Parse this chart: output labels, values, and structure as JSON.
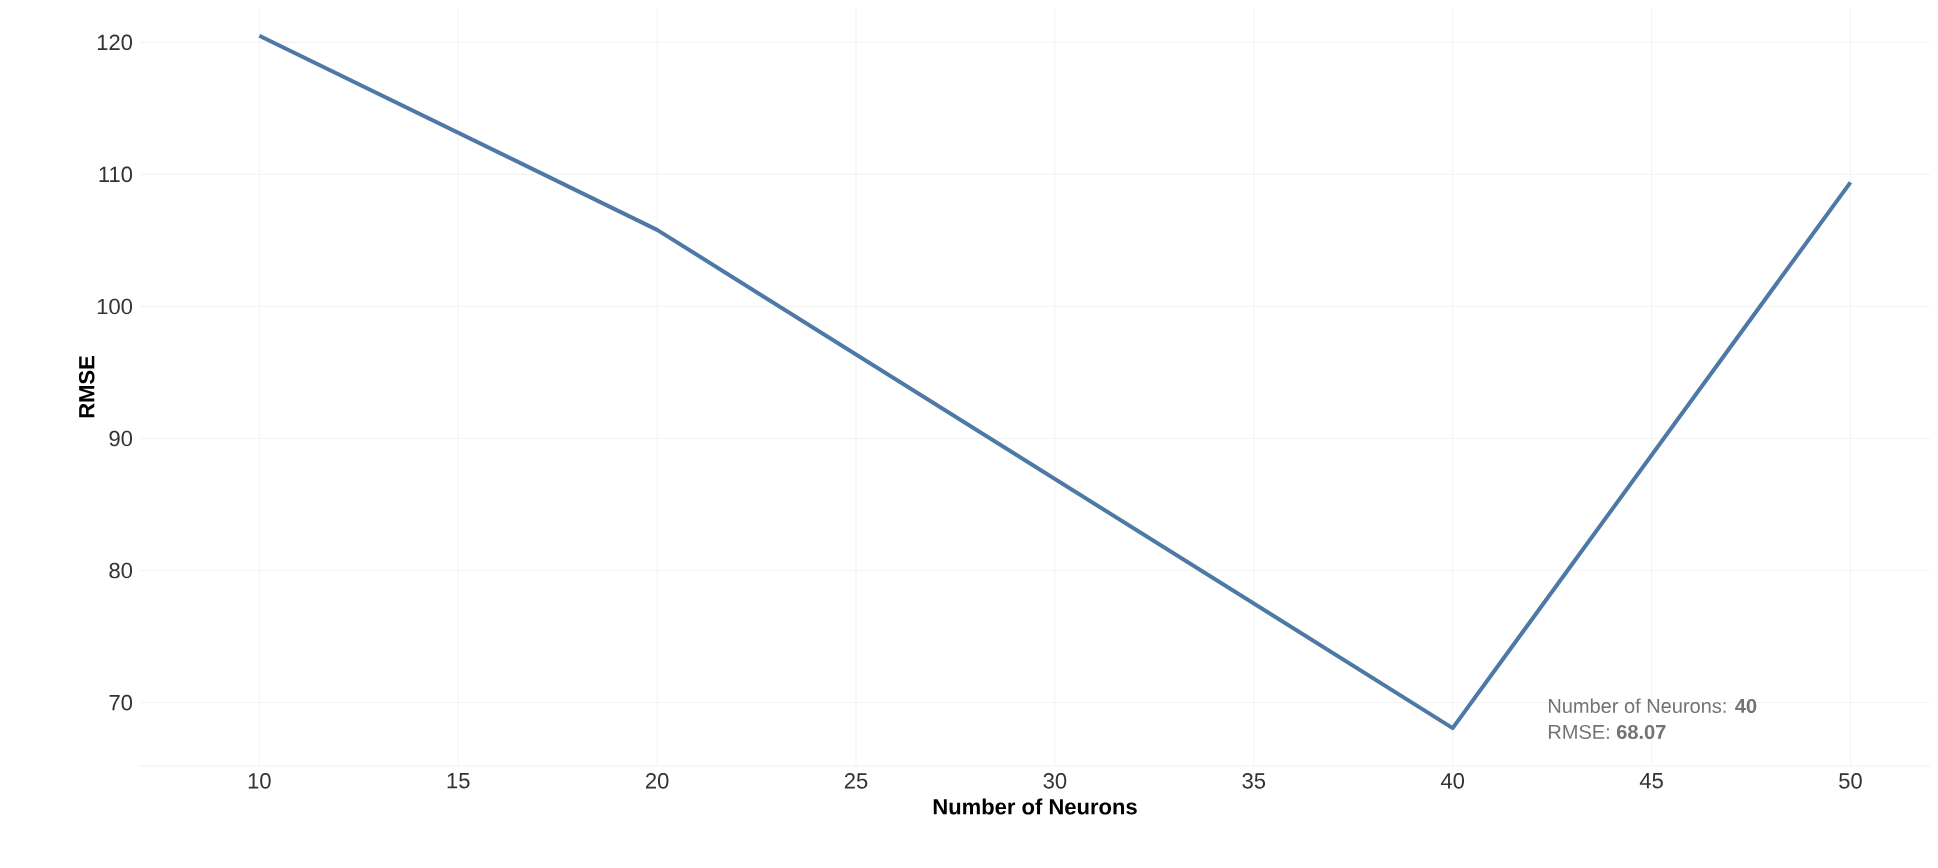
{
  "chart_data": {
    "type": "line",
    "xlabel": "Number of Neurons",
    "ylabel": "RMSE",
    "x": [
      10,
      20,
      40,
      50
    ],
    "series": [
      {
        "color": "#4e79a7",
        "values": [
          120.5,
          105.8,
          68.07,
          109.4
        ]
      }
    ],
    "xlim": [
      7,
      52
    ],
    "xticks": [
      10,
      15,
      20,
      25,
      30,
      35,
      40,
      45,
      50
    ],
    "ylim": [
      65.2,
      122.6
    ],
    "yticks": [
      70,
      80,
      90,
      100,
      110,
      120
    ],
    "grid": true,
    "line_style": "solid",
    "annotations": [
      "Number of Neurons: **40**",
      "RMSE: **68.07**"
    ]
  }
}
